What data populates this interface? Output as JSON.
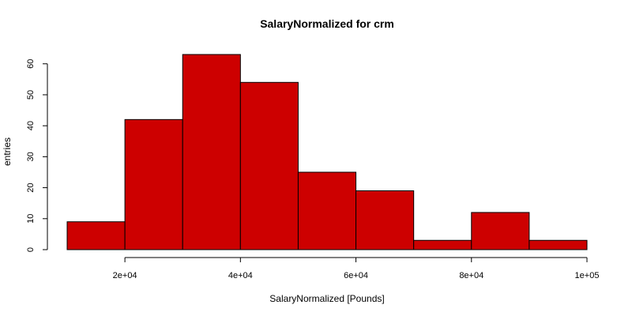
{
  "chart_data": {
    "type": "bar",
    "title": "SalaryNormalized for crm",
    "xlabel": "SalaryNormalized [Pounds]",
    "ylabel": "entries",
    "bins": [
      {
        "from": 10000,
        "to": 20000,
        "count": 9
      },
      {
        "from": 20000,
        "to": 30000,
        "count": 42
      },
      {
        "from": 30000,
        "to": 40000,
        "count": 63
      },
      {
        "from": 40000,
        "to": 50000,
        "count": 54
      },
      {
        "from": 50000,
        "to": 60000,
        "count": 25
      },
      {
        "from": 60000,
        "to": 70000,
        "count": 19
      },
      {
        "from": 70000,
        "to": 80000,
        "count": 3
      },
      {
        "from": 80000,
        "to": 90000,
        "count": 12
      },
      {
        "from": 90000,
        "to": 100000,
        "count": 3
      }
    ],
    "xlim": [
      10000,
      100000
    ],
    "ylim": [
      0,
      63
    ],
    "x_ticks": [
      {
        "value": 20000,
        "label": "2e+04"
      },
      {
        "value": 40000,
        "label": "4e+04"
      },
      {
        "value": 60000,
        "label": "6e+04"
      },
      {
        "value": 80000,
        "label": "8e+04"
      },
      {
        "value": 100000,
        "label": "1e+05"
      }
    ],
    "y_ticks": [
      {
        "value": 0,
        "label": "0"
      },
      {
        "value": 10,
        "label": "10"
      },
      {
        "value": 20,
        "label": "20"
      },
      {
        "value": 30,
        "label": "30"
      },
      {
        "value": 40,
        "label": "40"
      },
      {
        "value": 50,
        "label": "50"
      },
      {
        "value": 60,
        "label": "60"
      }
    ],
    "bar_color": "#cd0000",
    "grid": false,
    "legend": "none"
  }
}
